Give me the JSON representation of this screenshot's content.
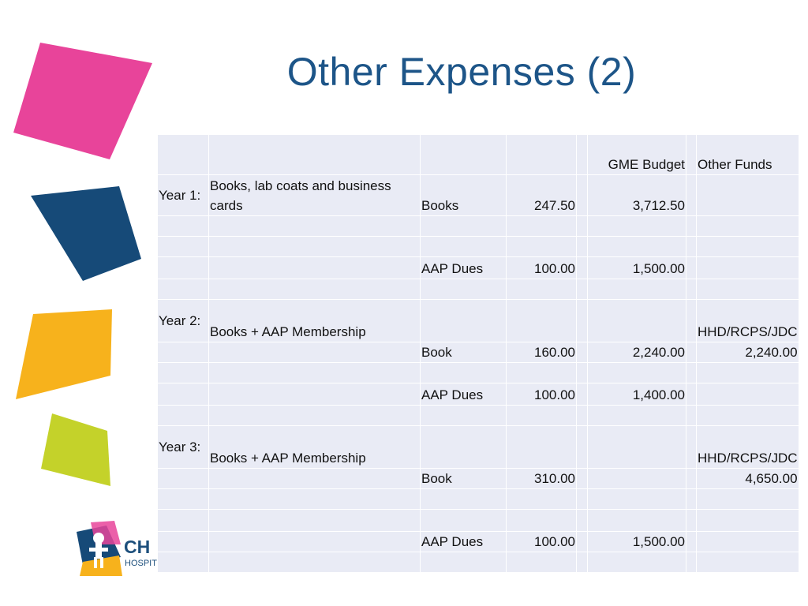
{
  "slide": {
    "title": "Other Expenses (2)",
    "logo": {
      "text": "CH",
      "subtext": "HOSPIT"
    }
  },
  "colors": {
    "title": "#1d5588",
    "table_fill": "#e9ebf5",
    "shape_pink": "#e8449a",
    "shape_navy": "#164a78",
    "shape_yellow": "#f7b21c",
    "shape_lime": "#c4d22a"
  },
  "table": {
    "header": {
      "c1": "",
      "c2": "",
      "c3": "",
      "c4": "",
      "c5": "",
      "c6": "GME Budget",
      "c7": "",
      "c8": "Other Funds"
    },
    "rows": [
      {
        "c1": "Year 1:",
        "c2": "Books, lab coats and business cards",
        "c3": "Books",
        "c4": "247.50",
        "c5": "",
        "c6": "3,712.50",
        "c7": "",
        "c8": ""
      },
      {
        "c1": "",
        "c2": "",
        "c3": "",
        "c4": "",
        "c5": "",
        "c6": "",
        "c7": "",
        "c8": ""
      },
      {
        "c1": "",
        "c2": "",
        "c3": "",
        "c4": "",
        "c5": "",
        "c6": "",
        "c7": "",
        "c8": ""
      },
      {
        "c1": "",
        "c2": "",
        "c3": "AAP Dues",
        "c4": "100.00",
        "c5": "",
        "c6": "1,500.00",
        "c7": "",
        "c8": ""
      },
      {
        "c1": "",
        "c2": "",
        "c3": "",
        "c4": "",
        "c5": "",
        "c6": "",
        "c7": "",
        "c8": ""
      },
      {
        "c1": "Year 2:",
        "c2": "Books + AAP Membership",
        "c3": "",
        "c4": "",
        "c5": "",
        "c6": "",
        "c7": "",
        "c8": "HHD/RCPS/JDC"
      },
      {
        "c1": "",
        "c2": "",
        "c3": "Book",
        "c4": "160.00",
        "c5": "",
        "c6": "2,240.00",
        "c7": "",
        "c8": "2,240.00"
      },
      {
        "c1": "",
        "c2": "",
        "c3": "",
        "c4": "",
        "c5": "",
        "c6": "",
        "c7": "",
        "c8": ""
      },
      {
        "c1": "",
        "c2": "",
        "c3": "AAP Dues",
        "c4": "100.00",
        "c5": "",
        "c6": "1,400.00",
        "c7": "",
        "c8": ""
      },
      {
        "c1": "",
        "c2": "",
        "c3": "",
        "c4": "",
        "c5": "",
        "c6": "",
        "c7": "",
        "c8": ""
      },
      {
        "c1": "Year 3:",
        "c2": "Books  + AAP Membership",
        "c3": "",
        "c4": "",
        "c5": "",
        "c6": "",
        "c7": "",
        "c8": "HHD/RCPS/JDC"
      },
      {
        "c1": "",
        "c2": "",
        "c3": "Book",
        "c4": "310.00",
        "c5": "",
        "c6": "",
        "c7": "",
        "c8": "4,650.00"
      },
      {
        "c1": "",
        "c2": "",
        "c3": "",
        "c4": "",
        "c5": "",
        "c6": "",
        "c7": "",
        "c8": ""
      },
      {
        "c1": "",
        "c2": "",
        "c3": "",
        "c4": "",
        "c5": "",
        "c6": "",
        "c7": "",
        "c8": ""
      },
      {
        "c1": "",
        "c2": "",
        "c3": "AAP Dues",
        "c4": "100.00",
        "c5": "",
        "c6": "1,500.00",
        "c7": "",
        "c8": ""
      },
      {
        "c1": "",
        "c2": "",
        "c3": "",
        "c4": "",
        "c5": "",
        "c6": "",
        "c7": "",
        "c8": ""
      }
    ]
  }
}
